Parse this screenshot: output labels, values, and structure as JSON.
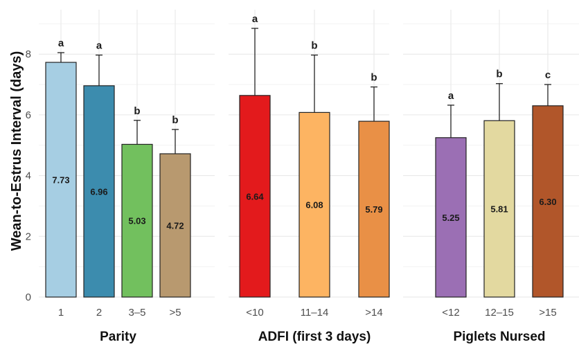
{
  "chart_data": {
    "type": "bar",
    "ylabel": "Wean-to-Estrus Interval (days)",
    "ylim": [
      0,
      9
    ],
    "yticks": [
      0,
      2,
      4,
      6,
      8
    ],
    "grid": true,
    "panels": [
      {
        "title": "Parity",
        "categories": [
          "1",
          "2",
          "3–5",
          ">5"
        ],
        "values": [
          7.73,
          6.96,
          5.03,
          4.72
        ],
        "value_labels": [
          "7.73",
          "6.96",
          "5.03",
          "4.72"
        ],
        "error_upper": [
          8.05,
          7.97,
          5.82,
          5.52
        ],
        "letters": [
          "a",
          "a",
          "b",
          "b"
        ],
        "colors": [
          "#a6cee3",
          "#3c8cae",
          "#72c05e",
          "#b8996f"
        ]
      },
      {
        "title": "ADFI (first 3 days)",
        "categories": [
          "<10",
          "11–14",
          ">14"
        ],
        "values": [
          6.64,
          6.08,
          5.79
        ],
        "value_labels": [
          "6.64",
          "6.08",
          "5.79"
        ],
        "error_upper": [
          8.85,
          7.97,
          6.92
        ],
        "letters": [
          "a",
          "b",
          "b"
        ],
        "colors": [
          "#e31a1c",
          "#fdb462",
          "#e99046"
        ]
      },
      {
        "title": "Piglets Nursed",
        "categories": [
          "<12",
          "12–15",
          ">15"
        ],
        "values": [
          5.25,
          5.81,
          6.3
        ],
        "value_labels": [
          "5.25",
          "5.81",
          "6.30"
        ],
        "error_upper": [
          6.32,
          7.03,
          7.0
        ],
        "letters": [
          "a",
          "b",
          "c"
        ],
        "colors": [
          "#9b6fb4",
          "#e3d9a0",
          "#b1562a"
        ]
      }
    ]
  }
}
